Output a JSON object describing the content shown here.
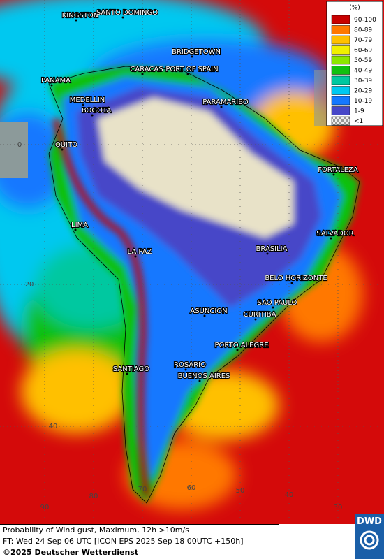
{
  "map": {
    "cities": [
      "KINGSTON",
      "SANTO DOMINGO",
      "BRIDGETOWN",
      "CARACAS",
      "PORT OF SPAIN",
      "PANAMA",
      "MEDELLIN",
      "BOGOTA",
      "PARAMARIBO",
      "QUITO",
      "FORTALEZA",
      "LIMA",
      "SALVADOR",
      "LA PAZ",
      "BRASILIA",
      "BELO HORIZONTE",
      "SAO PAULO",
      "ASUNCION",
      "CURITIBA",
      "PORTO ALEGRE",
      "ROSARIO",
      "SANTIAGO",
      "BUENOS AIRES"
    ],
    "grid_labels": [
      "0",
      "20",
      "40",
      "90",
      "80",
      "70",
      "60",
      "50",
      "40",
      "30"
    ],
    "legend": {
      "unit": "(%)",
      "entries": [
        {
          "label": "90-100",
          "color": "#c80000"
        },
        {
          "label": "80-89",
          "color": "#ff7800"
        },
        {
          "label": "70-79",
          "color": "#ffc000"
        },
        {
          "label": "60-69",
          "color": "#f0f000"
        },
        {
          "label": "50-59",
          "color": "#8ce600"
        },
        {
          "label": "40-49",
          "color": "#10c010"
        },
        {
          "label": "30-39",
          "color": "#00c8a0"
        },
        {
          "label": "20-29",
          "color": "#00c8f0"
        },
        {
          "label": "10-19",
          "color": "#1478ff"
        },
        {
          "label": "1-9",
          "color": "#4646c8"
        },
        {
          "label": "<1",
          "color": "#c8c8c8"
        }
      ]
    }
  },
  "footer": {
    "line1": "Probability of Wind gust, Maximum, 12h >10m/s",
    "line2": "FT: Wed 24 Sep 06 UTC [ICON EPS 2025 Sep 18 00UTC +150h]",
    "line3": "©2025 Deutscher Wetterdienst"
  },
  "logo": "DWD"
}
